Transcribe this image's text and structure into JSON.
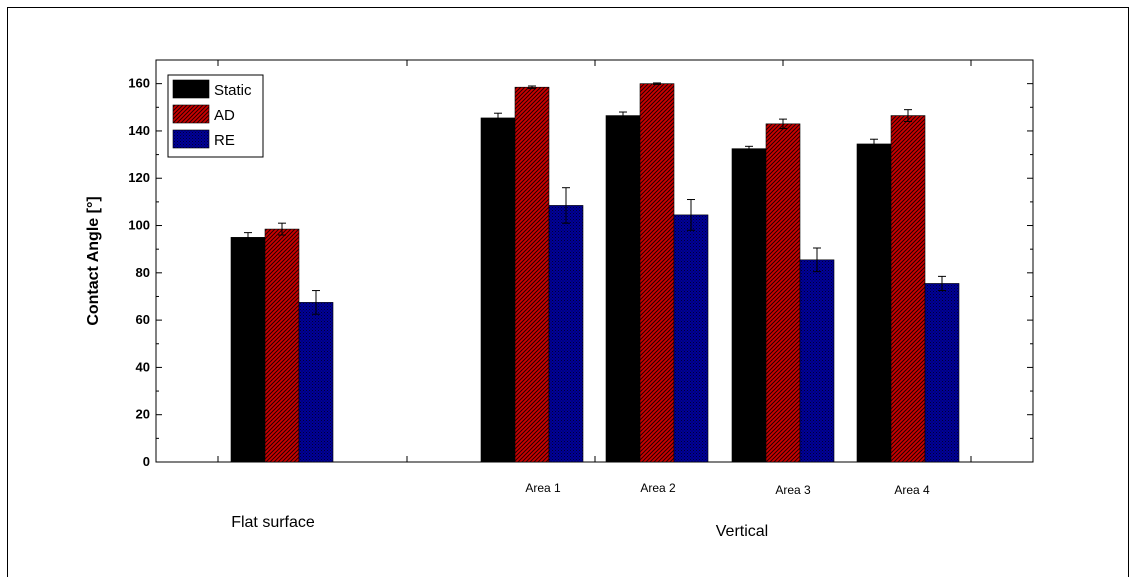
{
  "chart_data": {
    "type": "bar",
    "ylabel": "Contact Angle [°]",
    "ylim": [
      0,
      170
    ],
    "yticks": [
      0,
      20,
      40,
      60,
      80,
      100,
      120,
      140,
      160
    ],
    "categories": [
      "",
      "Area 1",
      "Area 2",
      "Area 3",
      "Area 4"
    ],
    "groups": [
      {
        "label": "Flat surface",
        "categories": [
          ""
        ]
      },
      {
        "label": "Vertical",
        "categories": [
          "Area 1",
          "Area 2",
          "Area 3",
          "Area 4"
        ]
      }
    ],
    "series": [
      {
        "name": "Static",
        "color": "#000000",
        "pattern": "solid",
        "values": [
          95,
          145.5,
          146.5,
          132.5,
          134.5
        ],
        "errors": [
          2,
          2,
          1.5,
          1,
          2
        ]
      },
      {
        "name": "AD",
        "color": "#cc0000",
        "pattern": "diagonal-hatch",
        "values": [
          98.5,
          158.5,
          160,
          143,
          146.5
        ],
        "errors": [
          2.5,
          0.5,
          0.3,
          2,
          2.5
        ]
      },
      {
        "name": "RE",
        "color": "#000099",
        "pattern": "crosshatch",
        "values": [
          67.5,
          108.5,
          104.5,
          85.5,
          75.5
        ],
        "errors": [
          5,
          7.5,
          6.5,
          5,
          3
        ]
      }
    ],
    "legend": "top-left",
    "grid": false
  }
}
